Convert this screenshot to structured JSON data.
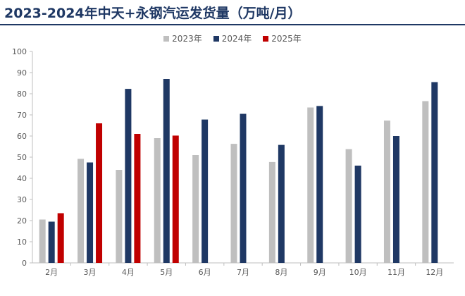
{
  "title": "2023-2024年中天+永钢汽运发货量（万吨/月）",
  "colors": {
    "2023年": "#bfbfbf",
    "2024年": "#1f3864",
    "2025年": "#c00000"
  },
  "chart_data": {
    "type": "bar",
    "title": "2023-2024年中天+永钢汽运发货量（万吨/月）",
    "xlabel": "",
    "ylabel": "",
    "ylim": [
      0,
      100
    ],
    "yticks": [
      0,
      10,
      20,
      30,
      40,
      50,
      60,
      70,
      80,
      90,
      100
    ],
    "categories": [
      "2月",
      "3月",
      "4月",
      "5月",
      "6月",
      "7月",
      "8月",
      "9月",
      "10月",
      "11月",
      "12月"
    ],
    "series": [
      {
        "name": "2023年",
        "values": [
          20.5,
          49.2,
          44,
          59,
          51,
          56.3,
          47.7,
          73.5,
          53.8,
          67.3,
          76.5
        ]
      },
      {
        "name": "2024年",
        "values": [
          19.5,
          47.5,
          82.3,
          87,
          67.8,
          70.5,
          55.8,
          74.2,
          46,
          60,
          85.5
        ]
      },
      {
        "name": "2025年",
        "values": [
          23.5,
          66,
          61,
          60.2,
          null,
          null,
          null,
          null,
          null,
          null,
          null
        ]
      }
    ],
    "legend": "top-center"
  }
}
